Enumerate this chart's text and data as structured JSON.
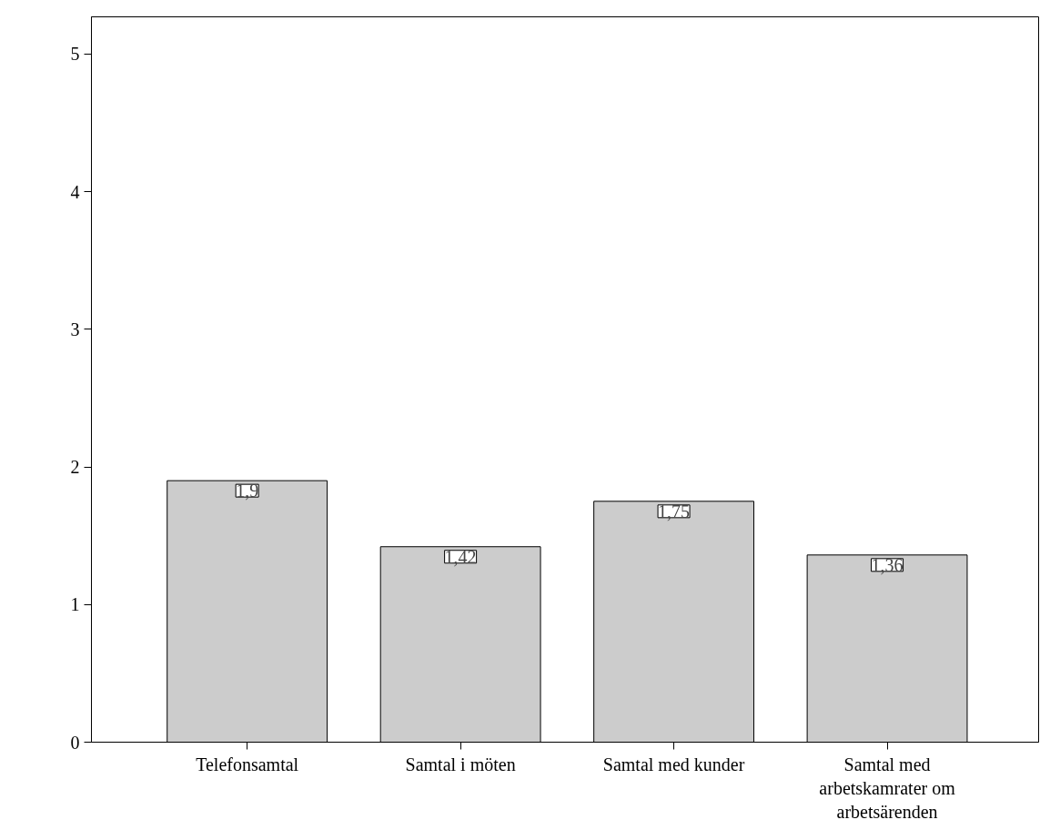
{
  "chart_data": {
    "type": "bar",
    "categories": [
      "Telefonsamtal",
      "Samtal i möten",
      "Samtal med kunder",
      "Samtal med arbetskamrater om arbetsärenden"
    ],
    "values": [
      1.9,
      1.42,
      1.75,
      1.36
    ],
    "value_labels": [
      "1,9",
      "1,42",
      "1,75",
      "1,36"
    ],
    "color": "#cccccc",
    "ylim": [
      0,
      5.27
    ],
    "yticks": [
      0,
      1,
      2,
      3,
      4,
      5
    ],
    "grid": false
  }
}
